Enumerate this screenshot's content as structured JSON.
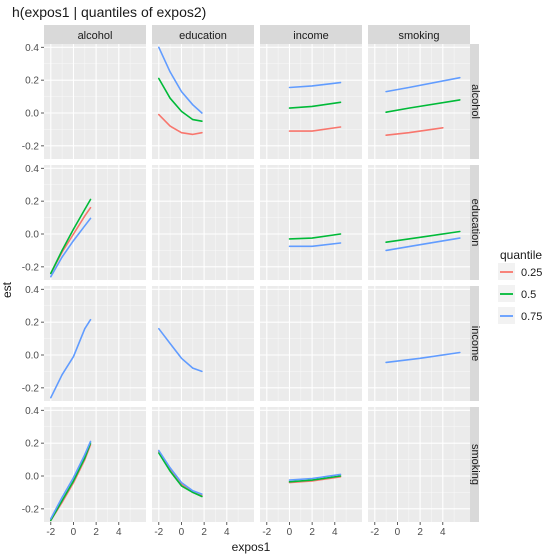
{
  "chart_data": {
    "type": "line",
    "title": "h(expos1 | quantiles of expos2)",
    "xlabel": "expos1",
    "ylabel": "est",
    "col_facets": [
      "alcohol",
      "education",
      "income",
      "smoking"
    ],
    "row_facets": [
      "alcohol",
      "education",
      "income",
      "smoking"
    ],
    "xlim": [
      -2.6,
      6.4
    ],
    "ylim": [
      -0.28,
      0.42
    ],
    "x_ticks": [
      -2,
      0,
      2,
      4
    ],
    "y_ticks": [
      -0.2,
      0.0,
      0.2,
      0.4
    ],
    "x_tick_labels": [
      "-2",
      "0",
      "2",
      "4"
    ],
    "y_tick_labels": [
      "-0.2",
      "0.0",
      "0.2",
      "0.4"
    ],
    "grid": true,
    "legend": {
      "title": "quantile",
      "position": "right",
      "entries": [
        "0.25",
        "0.5",
        "0.75"
      ],
      "colors": [
        "#F8766D",
        "#00BA38",
        "#619CFF"
      ]
    },
    "panels": [
      {
        "row": "alcohol",
        "col": "education",
        "series": [
          {
            "name": "0.25",
            "x": [
              -2.0,
              -1.0,
              0.0,
              1.0,
              1.8
            ],
            "y": [
              -0.01,
              -0.08,
              -0.12,
              -0.13,
              -0.12
            ]
          },
          {
            "name": "0.5",
            "x": [
              -2.0,
              -1.0,
              0.0,
              1.0,
              1.8
            ],
            "y": [
              0.21,
              0.09,
              0.01,
              -0.04,
              -0.05
            ]
          },
          {
            "name": "0.75",
            "x": [
              -2.0,
              -1.0,
              0.0,
              1.0,
              1.8
            ],
            "y": [
              0.4,
              0.25,
              0.13,
              0.05,
              0.0
            ]
          }
        ]
      },
      {
        "row": "alcohol",
        "col": "income",
        "series": [
          {
            "name": "0.25",
            "x": [
              0.0,
              2.0,
              4.5
            ],
            "y": [
              -0.11,
              -0.11,
              -0.085
            ]
          },
          {
            "name": "0.5",
            "x": [
              0.0,
              2.0,
              4.5
            ],
            "y": [
              0.03,
              0.04,
              0.065
            ]
          },
          {
            "name": "0.75",
            "x": [
              0.0,
              2.0,
              4.5
            ],
            "y": [
              0.155,
              0.165,
              0.185
            ]
          }
        ]
      },
      {
        "row": "alcohol",
        "col": "smoking",
        "series": [
          {
            "name": "0.25",
            "x": [
              -1.0,
              1.0,
              4.0
            ],
            "y": [
              -0.135,
              -0.12,
              -0.09
            ]
          },
          {
            "name": "0.5",
            "x": [
              -1.0,
              1.0,
              5.5
            ],
            "y": [
              0.005,
              0.03,
              0.08
            ]
          },
          {
            "name": "0.75",
            "x": [
              -1.0,
              1.0,
              5.5
            ],
            "y": [
              0.13,
              0.155,
              0.215
            ]
          }
        ]
      },
      {
        "row": "education",
        "col": "alcohol",
        "series": [
          {
            "name": "0.25",
            "x": [
              -2.0,
              -1.0,
              0.0,
              1.0,
              1.5
            ],
            "y": [
              -0.24,
              -0.11,
              0.0,
              0.11,
              0.16
            ]
          },
          {
            "name": "0.5",
            "x": [
              -2.0,
              -1.0,
              0.0,
              1.0,
              1.5
            ],
            "y": [
              -0.24,
              -0.1,
              0.03,
              0.15,
              0.21
            ]
          },
          {
            "name": "0.75",
            "x": [
              -2.0,
              -1.0,
              0.0,
              1.0,
              1.5
            ],
            "y": [
              -0.26,
              -0.14,
              -0.04,
              0.05,
              0.095
            ]
          }
        ]
      },
      {
        "row": "education",
        "col": "income",
        "series": [
          {
            "name": "0.5",
            "x": [
              0.0,
              2.0,
              4.5
            ],
            "y": [
              -0.03,
              -0.025,
              0.0
            ]
          },
          {
            "name": "0.75",
            "x": [
              0.0,
              2.0,
              4.5
            ],
            "y": [
              -0.075,
              -0.075,
              -0.055
            ]
          }
        ]
      },
      {
        "row": "education",
        "col": "smoking",
        "series": [
          {
            "name": "0.5",
            "x": [
              -1.0,
              2.0,
              5.5
            ],
            "y": [
              -0.05,
              -0.02,
              0.015
            ]
          },
          {
            "name": "0.75",
            "x": [
              -1.0,
              2.0,
              5.5
            ],
            "y": [
              -0.1,
              -0.065,
              -0.025
            ]
          }
        ]
      },
      {
        "row": "income",
        "col": "alcohol",
        "series": [
          {
            "name": "0.75",
            "x": [
              -2.0,
              -1.0,
              0.0,
              1.0,
              1.5
            ],
            "y": [
              -0.26,
              -0.12,
              -0.01,
              0.16,
              0.215
            ]
          }
        ]
      },
      {
        "row": "income",
        "col": "education",
        "series": [
          {
            "name": "0.75",
            "x": [
              -2.0,
              -1.0,
              0.0,
              1.0,
              1.8
            ],
            "y": [
              0.16,
              0.07,
              -0.02,
              -0.08,
              -0.1
            ]
          }
        ]
      },
      {
        "row": "income",
        "col": "smoking",
        "series": [
          {
            "name": "0.75",
            "x": [
              -1.0,
              2.0,
              5.5
            ],
            "y": [
              -0.045,
              -0.02,
              0.015
            ]
          }
        ]
      },
      {
        "row": "smoking",
        "col": "alcohol",
        "series": [
          {
            "name": "0.25",
            "x": [
              -2.0,
              -1.0,
              0.0,
              1.0,
              1.5
            ],
            "y": [
              -0.27,
              -0.16,
              -0.04,
              0.1,
              0.19
            ]
          },
          {
            "name": "0.5",
            "x": [
              -2.0,
              -1.0,
              0.0,
              1.0,
              1.5
            ],
            "y": [
              -0.27,
              -0.15,
              -0.03,
              0.11,
              0.2
            ]
          },
          {
            "name": "0.75",
            "x": [
              -2.0,
              -1.0,
              0.0,
              1.0,
              1.5
            ],
            "y": [
              -0.26,
              -0.13,
              -0.01,
              0.13,
              0.21
            ]
          }
        ]
      },
      {
        "row": "smoking",
        "col": "education",
        "series": [
          {
            "name": "0.25",
            "x": [
              -2.0,
              -1.0,
              0.0,
              1.0,
              1.8
            ],
            "y": [
              0.15,
              0.04,
              -0.05,
              -0.1,
              -0.12
            ]
          },
          {
            "name": "0.5",
            "x": [
              -2.0,
              -1.0,
              0.0,
              1.0,
              1.8
            ],
            "y": [
              0.14,
              0.03,
              -0.06,
              -0.1,
              -0.125
            ]
          },
          {
            "name": "0.75",
            "x": [
              -2.0,
              -1.0,
              0.0,
              1.0,
              1.8
            ],
            "y": [
              0.155,
              0.05,
              -0.04,
              -0.09,
              -0.11
            ]
          }
        ]
      },
      {
        "row": "smoking",
        "col": "income",
        "series": [
          {
            "name": "0.25",
            "x": [
              0.0,
              2.0,
              4.5
            ],
            "y": [
              -0.04,
              -0.03,
              -0.005
            ]
          },
          {
            "name": "0.5",
            "x": [
              0.0,
              2.0,
              4.5
            ],
            "y": [
              -0.035,
              -0.025,
              0.0
            ]
          },
          {
            "name": "0.75",
            "x": [
              0.0,
              2.0,
              4.5
            ],
            "y": [
              -0.025,
              -0.015,
              0.01
            ]
          }
        ]
      }
    ]
  }
}
